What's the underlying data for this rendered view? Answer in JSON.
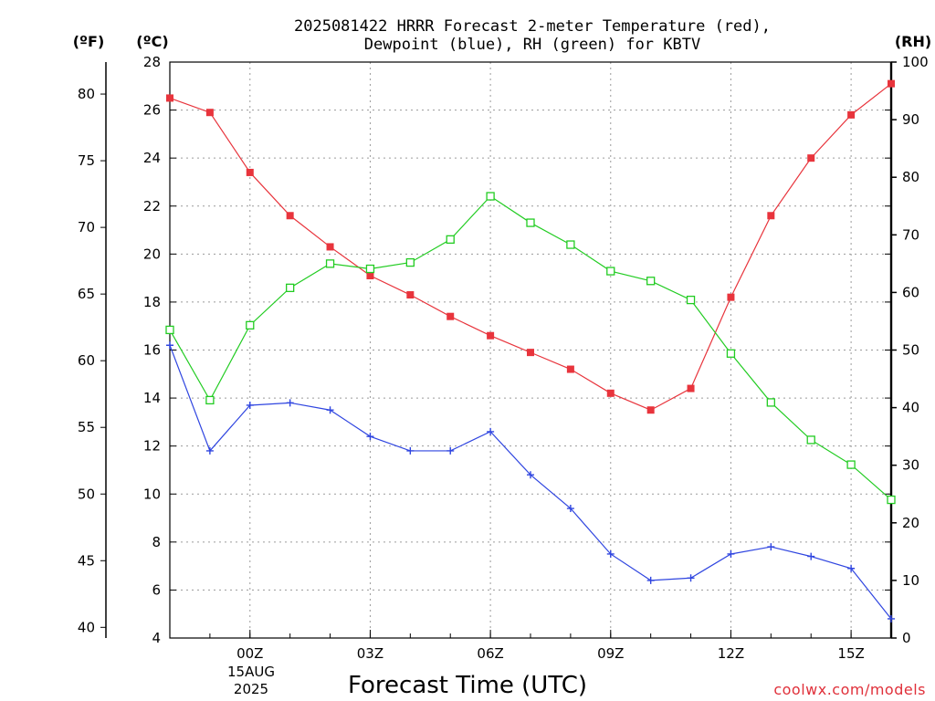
{
  "title_line1": "2025081422 HRRR Forecast 2-meter Temperature (red),",
  "title_line2": "Dewpoint (blue), RH (green) for KBTV",
  "unit_f": "(ºF)",
  "unit_c": "(ºC)",
  "unit_rh": "(RH)",
  "date_label_line1": "15AUG",
  "date_label_line2": "2025",
  "credit": "coolwx.com/models",
  "chart_data": {
    "type": "line",
    "title": "2025081422 HRRR Forecast 2-meter Temperature (red), Dewpoint (blue), RH (green) for KBTV",
    "xlabel": "Forecast Time (UTC)",
    "x_hours": [
      22,
      23,
      24,
      25,
      26,
      27,
      28,
      29,
      30,
      31,
      32,
      33,
      34,
      35,
      36,
      37,
      38,
      39,
      40
    ],
    "x_ticks": [
      {
        "hour": 24,
        "label": "00Z"
      },
      {
        "hour": 27,
        "label": "03Z"
      },
      {
        "hour": 30,
        "label": "06Z"
      },
      {
        "hour": 33,
        "label": "09Z"
      },
      {
        "hour": 36,
        "label": "12Z"
      },
      {
        "hour": 39,
        "label": "15Z"
      }
    ],
    "xlim": [
      22,
      40
    ],
    "left_axis_c": {
      "label": "(ºC)",
      "ylim": [
        4,
        28
      ],
      "ticks": [
        4,
        6,
        8,
        10,
        12,
        14,
        16,
        18,
        20,
        22,
        24,
        26,
        28
      ]
    },
    "left_axis_f": {
      "label": "(ºF)",
      "ticks": [
        40,
        45,
        50,
        55,
        60,
        65,
        70,
        75,
        80
      ]
    },
    "right_axis_rh": {
      "label": "(RH)",
      "ylim": [
        0,
        100
      ],
      "ticks": [
        0,
        10,
        20,
        30,
        40,
        50,
        60,
        70,
        80,
        90,
        100
      ]
    },
    "grid": true,
    "colors": {
      "temperature": "#e8343c",
      "dewpoint": "#2f45e0",
      "rh": "#22cc22"
    },
    "series": [
      {
        "name": "Temperature",
        "axis": "c",
        "marker": "filled-square",
        "values": [
          26.5,
          25.9,
          23.4,
          21.6,
          20.3,
          19.1,
          18.3,
          17.4,
          16.6,
          15.9,
          15.2,
          14.2,
          13.5,
          14.4,
          18.2,
          21.6,
          24.0,
          25.8,
          27.1
        ]
      },
      {
        "name": "Dewpoint",
        "axis": "c",
        "marker": "plus",
        "values": [
          16.2,
          11.8,
          13.7,
          13.8,
          13.5,
          12.4,
          11.8,
          11.8,
          12.6,
          10.8,
          9.4,
          7.5,
          6.4,
          6.5,
          7.5,
          7.8,
          7.4,
          6.9,
          4.8
        ]
      },
      {
        "name": "RH",
        "axis": "rh",
        "marker": "open-square",
        "values": [
          53.5,
          41.3,
          54.3,
          60.8,
          65.0,
          64.1,
          65.2,
          69.2,
          76.7,
          72.1,
          68.3,
          63.7,
          62.0,
          58.7,
          49.4,
          40.9,
          34.4,
          30.1,
          24.0
        ]
      }
    ]
  }
}
